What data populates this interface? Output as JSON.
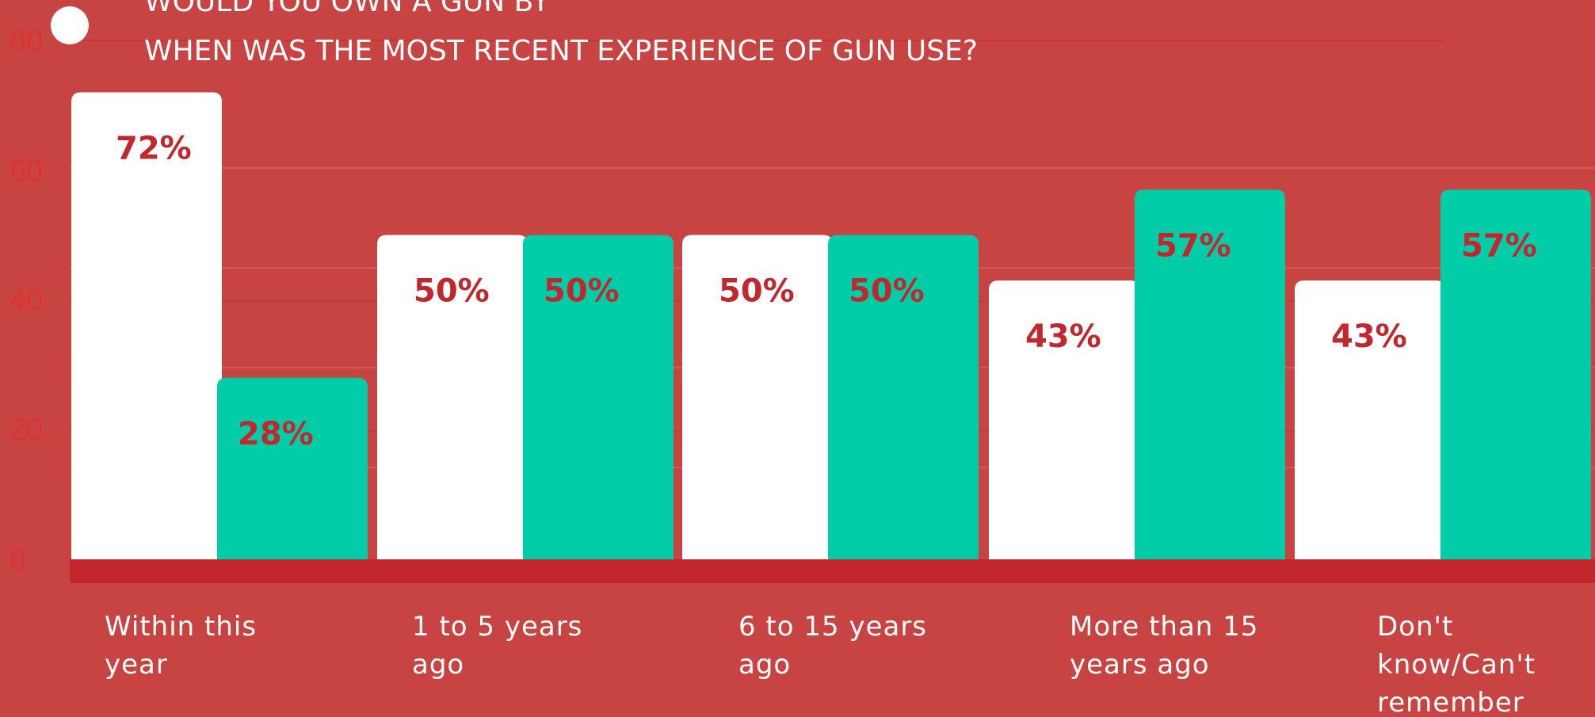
{
  "chart_data": {
    "type": "bar",
    "title_lines": [
      "WOULD YOU OWN A GUN BY",
      "WHEN WAS THE MOST RECENT EXPERIENCE OF GUN USE?"
    ],
    "categories": [
      [
        "Within this",
        "year"
      ],
      [
        "1 to 5 years",
        "ago"
      ],
      [
        "6 to 15 years",
        "ago"
      ],
      [
        "More than 15",
        "years ago"
      ],
      [
        "Don't",
        "know/Can't",
        "remember"
      ]
    ],
    "series": [
      {
        "color": "#ffffff",
        "values": [
          72,
          50,
          50,
          43,
          43
        ],
        "labels": [
          "72%",
          "50%",
          "50%",
          "43%",
          "43%"
        ]
      },
      {
        "color": "#00cca8",
        "values": [
          28,
          50,
          50,
          57,
          57
        ],
        "labels": [
          "28%",
          "50%",
          "50%",
          "57%",
          "57%"
        ]
      }
    ],
    "yaxis": {
      "ticks": [
        0,
        20,
        40,
        60,
        80
      ],
      "ylim": [
        0,
        80
      ]
    },
    "ghost_axis": {
      "ticks": [
        "60",
        "45",
        "30",
        "15"
      ]
    },
    "legend": {
      "marker_color": "#ffffff"
    },
    "colors": {
      "background": "#c74443",
      "baseline": "#c1272d",
      "value_text": "#c1272d",
      "tick_text": "#e0322e"
    },
    "grid": true
  }
}
